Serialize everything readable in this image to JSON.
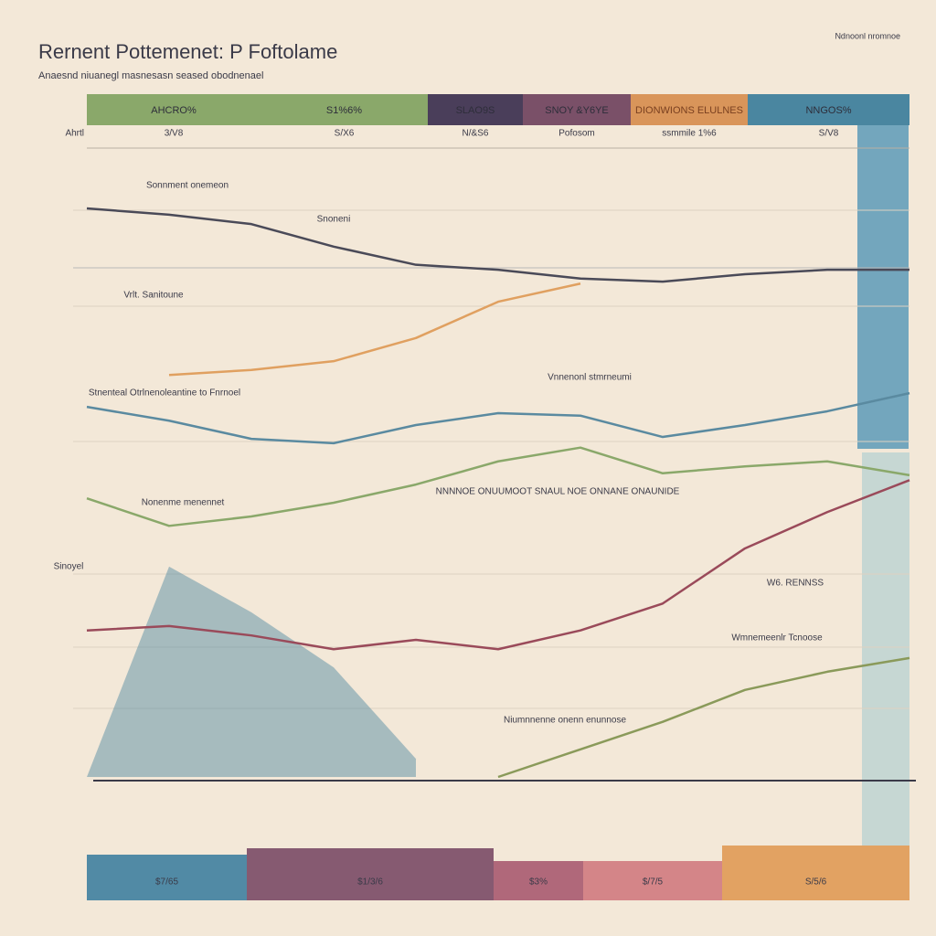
{
  "header": {
    "title": "Rernent Pottemenet: P Foftolame",
    "subtitle": "Anaesnd niuanegl masnesasn seased obodnenael",
    "corner": "Ndnoonl nromnoe",
    "row_label": "Ahrtl"
  },
  "columns": [
    {
      "label": "AHCRO%",
      "sub": "3/V8",
      "color": "#8aa86a"
    },
    {
      "label": "S1%6%",
      "sub": "S/X6",
      "color": "#8aa86a"
    },
    {
      "label": "SLAO9S",
      "sub": "N/&S6",
      "color": "#4a3e5a"
    },
    {
      "label": "SNOY &Y6YE",
      "sub": "Pofosom",
      "color": "#7a5068"
    },
    {
      "label": "DIONWIONS ELULNES",
      "sub": "ssmmile 1%6",
      "color": "#d9955a"
    },
    {
      "label": "NNGOS%",
      "sub": "S/V8",
      "color": "#4a86a0"
    }
  ],
  "footer_blocks": [
    {
      "label": "$7/65",
      "color": "#3f7fa0"
    },
    {
      "label": "$1/3/6",
      "color": "#7a4a66"
    },
    {
      "label": "$3%",
      "color": "#a85a70"
    },
    {
      "label": "$/7/5",
      "color": "#d07a80"
    },
    {
      "label": "S/5/6",
      "color": "#e09a55"
    }
  ],
  "chart_data": {
    "type": "line",
    "x": [
      0,
      1,
      2,
      3,
      4,
      5,
      6,
      7,
      8,
      9,
      10
    ],
    "xlim": [
      0,
      10
    ],
    "ylim": [
      0,
      100
    ],
    "annotations": [
      "Sonnment onemeon",
      "Vrlt. Sanitoune",
      "Stnenteal Otrlnenoleantine to Fnrnoel",
      "Nonenme menennet",
      "NNNNOE ONUUMOOT SNAUL NOE ONNANE ONAUNIDE",
      "Niumnnenne onenn enunnose",
      "Sinoyel",
      "W6. RENNSS",
      "Vnnenonl stmrneumi",
      "Snoneni",
      "Wmnemeenlr Tcnoose"
    ],
    "series": [
      {
        "color": "#4a86a0",
        "area": true,
        "values": [
          0,
          33.6,
          26.3,
          17.5,
          2.9,
          null,
          null,
          null,
          null,
          null,
          null
        ]
      },
      {
        "color": "#4a4a58",
        "values": [
          90.8,
          89.8,
          88.3,
          84.7,
          81.8,
          81.0,
          79.6,
          79.1,
          80.3,
          81.0,
          81.0
        ]
      },
      {
        "color": "#e0a060",
        "values": [
          null,
          64.2,
          65.0,
          66.4,
          70.1,
          75.9,
          78.8,
          null,
          null,
          null,
          null
        ]
      },
      {
        "color": "#5a8aa0",
        "values": [
          59.1,
          56.9,
          54.0,
          53.3,
          56.2,
          58.1,
          57.7,
          54.3,
          56.2,
          58.4,
          61.3
        ]
      },
      {
        "color": "#8aa86a",
        "values": [
          44.5,
          40.1,
          41.6,
          43.8,
          46.7,
          50.4,
          52.6,
          48.5,
          49.6,
          50.4,
          48.2
        ]
      },
      {
        "color": "#9a4a5a",
        "values": [
          23.4,
          24.1,
          22.6,
          20.4,
          21.9,
          20.4,
          23.4,
          27.7,
          36.5,
          42.3,
          47.4
        ]
      },
      {
        "color": "#8a9a5a",
        "values": [
          null,
          null,
          null,
          null,
          null,
          0,
          4.4,
          8.8,
          13.9,
          16.8,
          19.0
        ]
      }
    ]
  }
}
